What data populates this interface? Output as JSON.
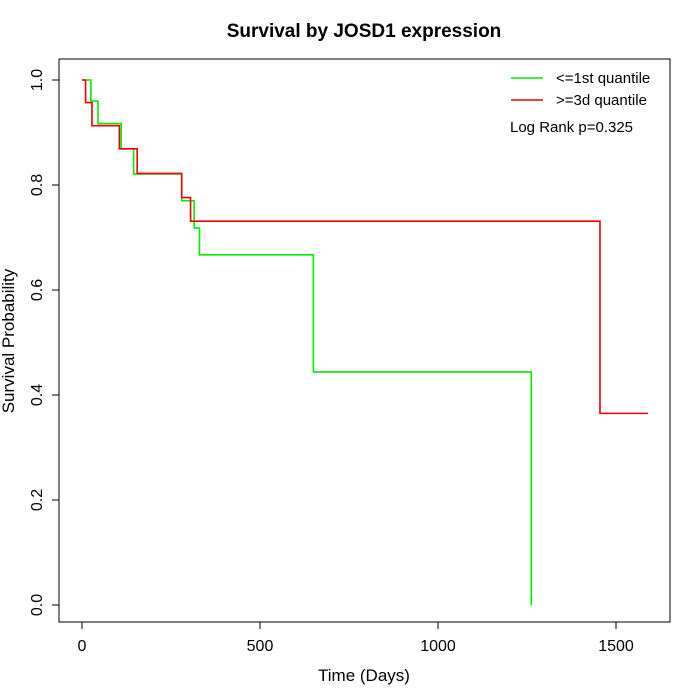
{
  "chart_data": {
    "type": "line",
    "step": true,
    "title": "Survival by JOSD1 expression",
    "xlabel": "Time (Days)",
    "ylabel": "Survival Probability",
    "xlim": [
      0,
      1650
    ],
    "ylim": [
      0,
      1
    ],
    "xticks": [
      0,
      500,
      1000,
      1500
    ],
    "xtick_labels": [
      "0",
      "500",
      "1000",
      "1500"
    ],
    "yticks": [
      0,
      0.2,
      0.4,
      0.6,
      0.8,
      1.0
    ],
    "ytick_labels": [
      "0.0",
      "0.2",
      "0.4",
      "0.6",
      "0.8",
      "1.0"
    ],
    "grid": false,
    "legend_position": "top-right",
    "annotation": "Log Rank p=0.325",
    "series": [
      {
        "name": "<=1st quantile",
        "color": "#00ee00",
        "x": [
          0,
          25,
          45,
          110,
          145,
          280,
          285,
          315,
          330,
          650,
          1262
        ],
        "y": [
          1.0,
          0.96,
          0.917,
          0.869,
          0.821,
          0.77,
          0.77,
          0.718,
          0.667,
          0.444,
          0.0
        ]
      },
      {
        "name": ">=3d quantile",
        "color": "#ee0000",
        "x": [
          0,
          10,
          28,
          105,
          155,
          280,
          295,
          305,
          1455,
          1590
        ],
        "y": [
          1.0,
          0.957,
          0.913,
          0.869,
          0.822,
          0.776,
          0.776,
          0.731,
          0.365,
          0.365
        ]
      }
    ]
  }
}
